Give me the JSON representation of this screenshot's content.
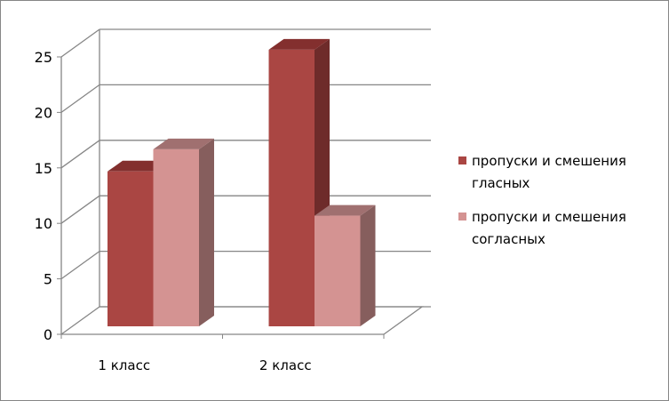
{
  "chart_data": {
    "type": "bar",
    "style": "3d-clustered-column",
    "categories": [
      "1 класс",
      "2 класс"
    ],
    "series": [
      {
        "name": "пропуски и смешения гласных",
        "name_lines": [
          "пропуски и смешения",
          "гласных"
        ],
        "values": [
          14,
          25
        ],
        "color": "#AA4643"
      },
      {
        "name": "пропуски и смешения согласных",
        "name_lines": [
          "пропуски и смешения",
          "согласных"
        ],
        "values": [
          16,
          10
        ],
        "color": "#D49392"
      }
    ],
    "yticks": [
      0,
      5,
      10,
      15,
      20,
      25
    ],
    "ylim": [
      0,
      25
    ],
    "grid": true,
    "legend_position": "right"
  }
}
